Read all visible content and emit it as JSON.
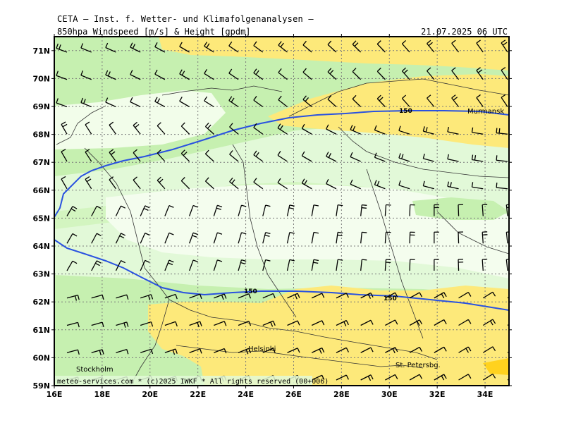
{
  "header": {
    "organization": "CETA — Inst. f. Wetter- und Klimafolgenanalysen —",
    "parameter": "850hpa_Windspeed_[m/s]_&_Height_[gpdm]",
    "valid_time": "21.07.2025 06 UTC"
  },
  "axes": {
    "lat_labels": [
      "59N",
      "60N",
      "61N",
      "62N",
      "63N",
      "64N",
      "65N",
      "66N",
      "67N",
      "68N",
      "69N",
      "70N",
      "71N"
    ],
    "lon_labels": [
      "16E",
      "18E",
      "20E",
      "22E",
      "24E",
      "26E",
      "28E",
      "30E",
      "32E",
      "34E"
    ]
  },
  "cities": [
    {
      "name": "Murmansk",
      "lon": 33.1,
      "lat": 68.97
    },
    {
      "name": "Helsinki",
      "lon": 24.9,
      "lat": 60.2
    },
    {
      "name": "Stockholm",
      "lon": 18.1,
      "lat": 59.6
    },
    {
      "name": "St. Petersbg.",
      "lon": 30.3,
      "lat": 59.9
    }
  ],
  "contours": [
    {
      "label": "150",
      "label_positions": [
        {
          "lon": 30.6,
          "lat": 68.8
        }
      ]
    },
    {
      "label": "150",
      "label_positions": [
        {
          "lon": 24.2,
          "lat": 62.4
        },
        {
          "lon": 30.0,
          "lat": 62.1
        }
      ]
    }
  ],
  "footer": "meteo-services.com * (c)2025 IWKF * All rights reserved (00+006)",
  "colors": {
    "contour": "#2a52e0",
    "wind_weak": "#fafff5",
    "wind_light": "#e2f9d8",
    "wind_moderate": "#c6f0b0",
    "wind_strong": "#fde97a",
    "wind_very_strong": "#ffd21e",
    "grid": "#7a7a7a",
    "border": "#000000"
  }
}
